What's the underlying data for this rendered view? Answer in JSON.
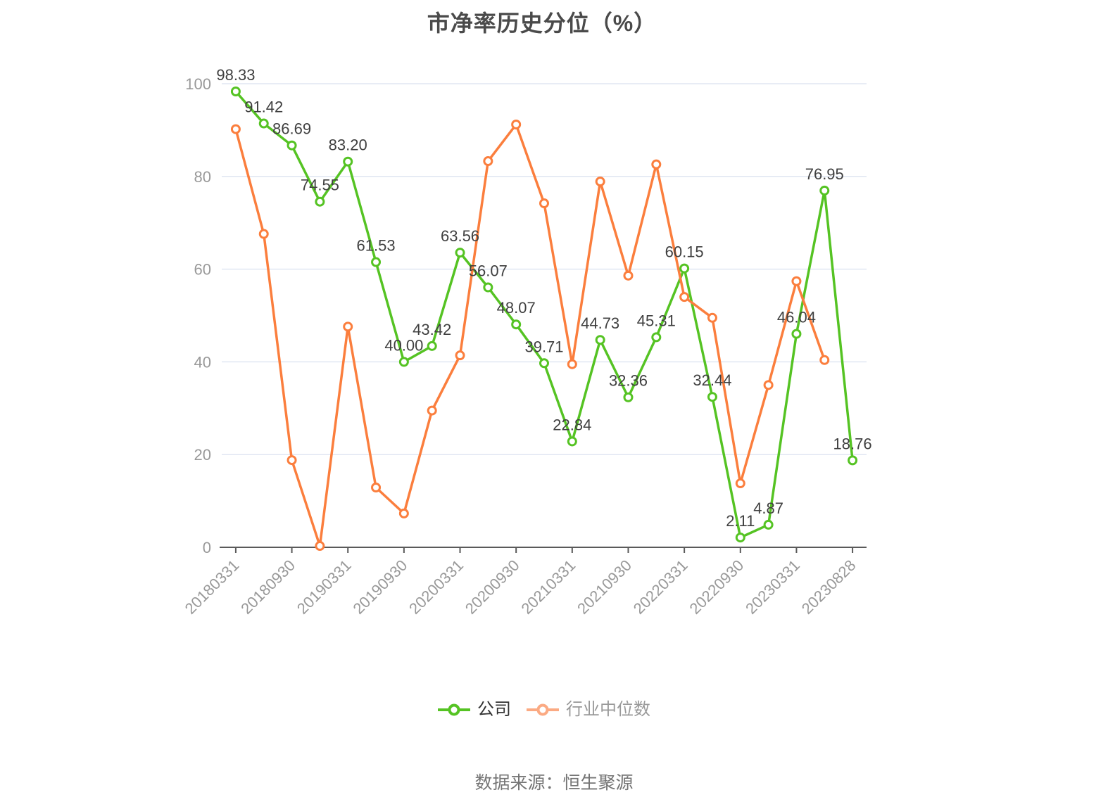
{
  "title": "市净率历史分位（%）",
  "source_note": "数据来源：恒生聚源",
  "legend": {
    "position": "bottom",
    "items": [
      {
        "label": "公司",
        "icon_color": "#55c323",
        "text_color": "#333333"
      },
      {
        "label": "行业中位数",
        "icon_color": "#fbaa83",
        "text_color": "#999999"
      }
    ]
  },
  "chart_data": {
    "type": "line",
    "title": "市净率历史分位（%）",
    "xlabel": "",
    "ylabel": "",
    "ylim": [
      0,
      100
    ],
    "y_ticks": [
      0,
      20,
      40,
      60,
      80,
      100
    ],
    "grid": "horizontal-only",
    "legend_position": "bottom",
    "categories": [
      "20180331",
      "20180630",
      "20180930",
      "20181231",
      "20190331",
      "20190630",
      "20190930",
      "20191231",
      "20200331",
      "20200630",
      "20200930",
      "20201231",
      "20210331",
      "20210630",
      "20210930",
      "20211231",
      "20220331",
      "20220630",
      "20220930",
      "20221231",
      "20230331",
      "20230630",
      "20230828"
    ],
    "x_label_every": 2,
    "x_axis_labels": [
      "20180331",
      "20180930",
      "20190331",
      "20190930",
      "20200331",
      "20200930",
      "20210331",
      "20210930",
      "20220331",
      "20220930",
      "20230331",
      "20230828"
    ],
    "series": [
      {
        "id": "company",
        "name": "公司",
        "color": "#55c323",
        "values": [
          98.33,
          91.42,
          86.69,
          74.55,
          83.2,
          61.53,
          40.0,
          43.42,
          63.56,
          56.07,
          48.07,
          39.71,
          22.84,
          44.73,
          32.36,
          45.31,
          60.15,
          32.44,
          2.11,
          4.87,
          46.04,
          76.95,
          18.76
        ],
        "labels": [
          "98.33",
          "91.42",
          "86.69",
          "74.55",
          "83.20",
          "61.53",
          "40.00",
          "43.42",
          "63.56",
          "56.07",
          "48.07",
          "39.71",
          "22.84",
          "44.73",
          "32.36",
          "45.31",
          "60.15",
          "32.44",
          "2.11",
          "4.87",
          "46.04",
          "76.95",
          "18.76"
        ]
      },
      {
        "id": "industry-median",
        "name": "行业中位数",
        "color": "#fb7e3d",
        "values": [
          90.2,
          67.6,
          18.8,
          0.3,
          47.6,
          12.9,
          7.3,
          29.5,
          41.4,
          83.3,
          91.2,
          74.2,
          39.5,
          78.9,
          58.6,
          82.6,
          54.0,
          49.5,
          13.8,
          35.0,
          57.4,
          40.4,
          null
        ],
        "labels": null
      }
    ],
    "style": {
      "grid_color": "#e0e6f2",
      "axis_line_color": "#5a5a5a",
      "axis_label_color": "#999999",
      "data_label_color": "#404040",
      "marker_fill": "#ffffff"
    }
  }
}
